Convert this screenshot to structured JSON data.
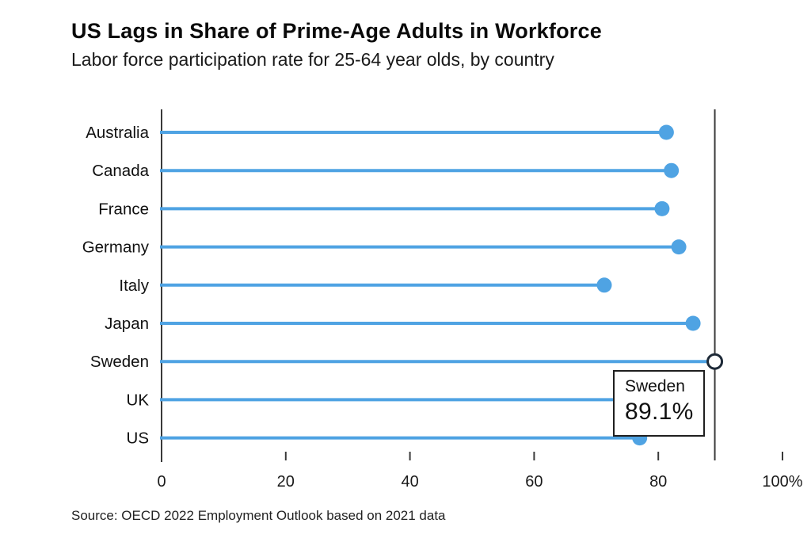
{
  "chart_data": {
    "type": "bar",
    "variant": "horizontal-lollipop",
    "title": "US Lags in Share of Prime-Age Adults in Workforce",
    "subtitle": "Labor force participation rate for 25-64 year olds, by country",
    "source": "Source: OECD 2022 Employment Outlook based on 2021 data",
    "categories": [
      "Australia",
      "Canada",
      "France",
      "Germany",
      "Italy",
      "Japan",
      "Sweden",
      "UK",
      "US"
    ],
    "values": [
      81.3,
      82.1,
      80.6,
      83.3,
      71.3,
      85.6,
      89.1,
      82.3,
      77.0
    ],
    "xlabel": "",
    "ylabel": "",
    "xlim": [
      0,
      100
    ],
    "x_ticks": [
      0,
      20,
      40,
      60,
      80,
      100
    ],
    "x_tick_labels": [
      "0",
      "20",
      "40",
      "60",
      "80",
      "100%"
    ],
    "grid": false,
    "legend": null,
    "highlight": {
      "category": "Sweden",
      "value": 89.1,
      "marker": "open-circle",
      "reference_line_value": 89.1,
      "tooltip": {
        "title": "Sweden",
        "value": "89.1%"
      }
    },
    "occluded_points": [
      "UK"
    ],
    "notes": "UK dot is hidden behind the hover tooltip; its value is estimated from the visible line.",
    "colors": {
      "series": "#4fa3e3",
      "axis": "#3a3a3a",
      "reference_line": "#3a3a3a",
      "highlight_ring": "#1e2a38",
      "tick_text": "#1a1a1a",
      "tooltip_border": "#1f1f1f"
    }
  }
}
